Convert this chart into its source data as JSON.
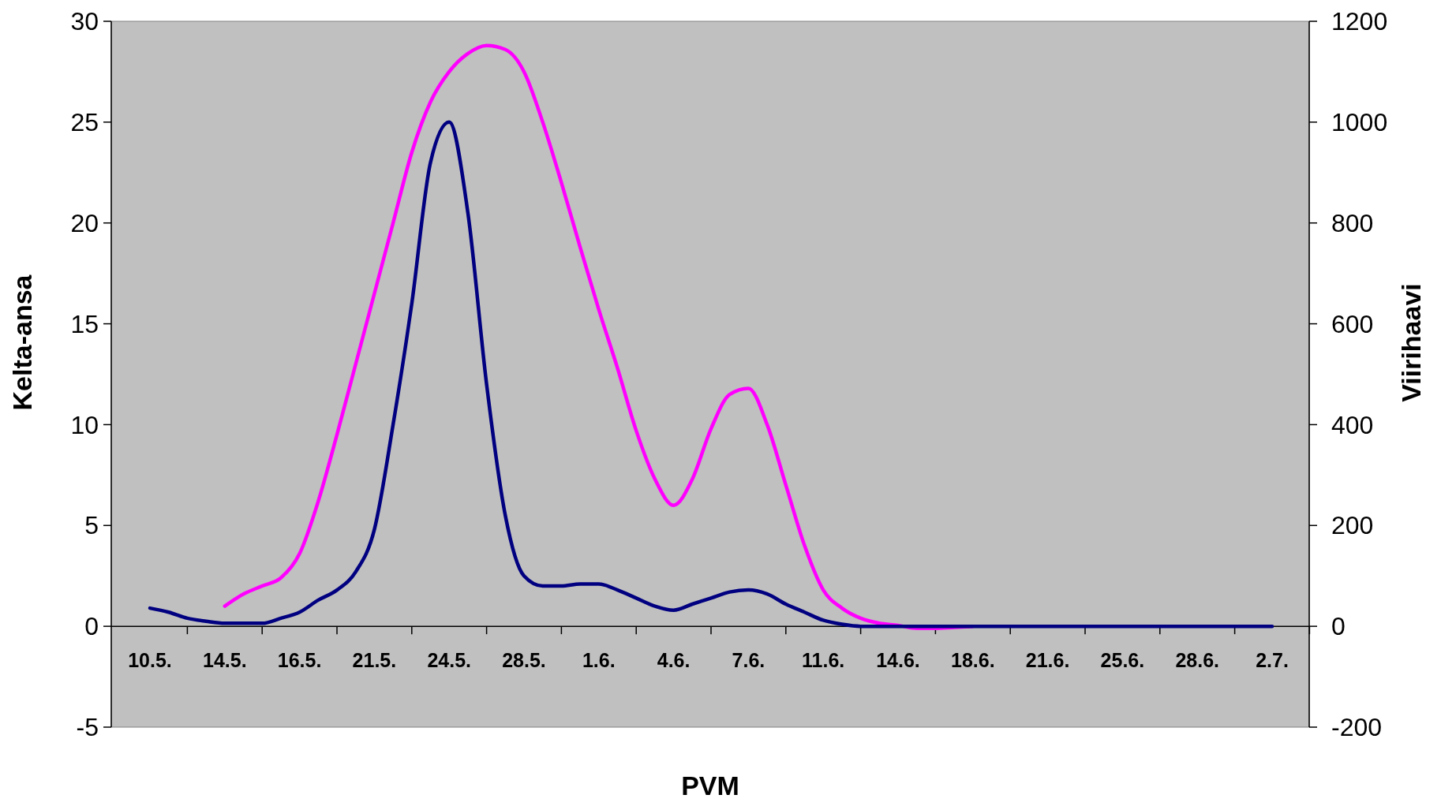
{
  "chart_data": {
    "type": "line",
    "xlabel": "PVM",
    "ylabel": "Kelta-ansa",
    "y2label": "Viirihaavi",
    "categories": [
      "10.5.",
      null,
      null,
      null,
      "14.5.",
      null,
      null,
      null,
      "16.5.",
      null,
      null,
      null,
      "21.5.",
      null,
      null,
      null,
      "24.5.",
      null,
      null,
      null,
      "28.5.",
      null,
      null,
      null,
      "1.6.",
      null,
      null,
      null,
      "4.6.",
      null,
      null,
      null,
      "7.6.",
      null,
      null,
      null,
      "11.6.",
      null,
      null,
      null,
      "14.6.",
      null,
      null,
      null,
      "18.6.",
      null,
      null,
      null,
      "21.6.",
      null,
      null,
      null,
      "25.6.",
      null,
      null,
      null,
      "28.6.",
      null,
      null,
      null,
      "2.7."
    ],
    "series": [
      {
        "color": "#ff00ff",
        "values": [
          null,
          null,
          null,
          null,
          1.0,
          1.6,
          2.0,
          2.4,
          3.6,
          6.2,
          9.5,
          13.0,
          16.5,
          20.0,
          23.5,
          26.0,
          27.5,
          28.4,
          28.8,
          28.6,
          27.5,
          25.0,
          22.0,
          18.8,
          15.7,
          12.8,
          9.7,
          7.3,
          6.0,
          7.3,
          9.8,
          11.5,
          11.8,
          10.0,
          7.0,
          4.0,
          1.8,
          0.9,
          0.4,
          0.15,
          0.05,
          -0.1,
          -0.1,
          -0.05,
          0,
          null,
          null,
          null,
          null,
          null,
          null,
          null,
          null,
          null,
          null,
          null,
          null,
          null,
          null,
          null,
          null
        ]
      },
      {
        "color": "#000080",
        "axis": "y2",
        "values": [
          36,
          28,
          16,
          10,
          6,
          6,
          6,
          16,
          28,
          52,
          72,
          108,
          192,
          400,
          640,
          920,
          1000,
          820,
          480,
          220,
          100,
          80,
          80,
          84,
          84,
          72,
          56,
          40,
          32,
          44,
          56,
          68,
          72,
          64,
          44,
          28,
          12,
          4,
          0,
          0,
          0,
          0,
          0,
          0,
          0,
          0,
          0,
          0,
          0,
          0,
          0,
          0,
          0,
          0,
          0,
          0,
          0,
          0,
          0,
          0,
          0
        ]
      }
    ],
    "ylim": [
      -5,
      30
    ],
    "yticks": [
      -5,
      0,
      5,
      10,
      15,
      20,
      25,
      30
    ],
    "y2lim": [
      -200,
      1200
    ],
    "y2ticks": [
      -200,
      0,
      200,
      400,
      600,
      800,
      1000,
      1200
    ],
    "grid": false,
    "line_style": "solid",
    "marker": "none"
  }
}
